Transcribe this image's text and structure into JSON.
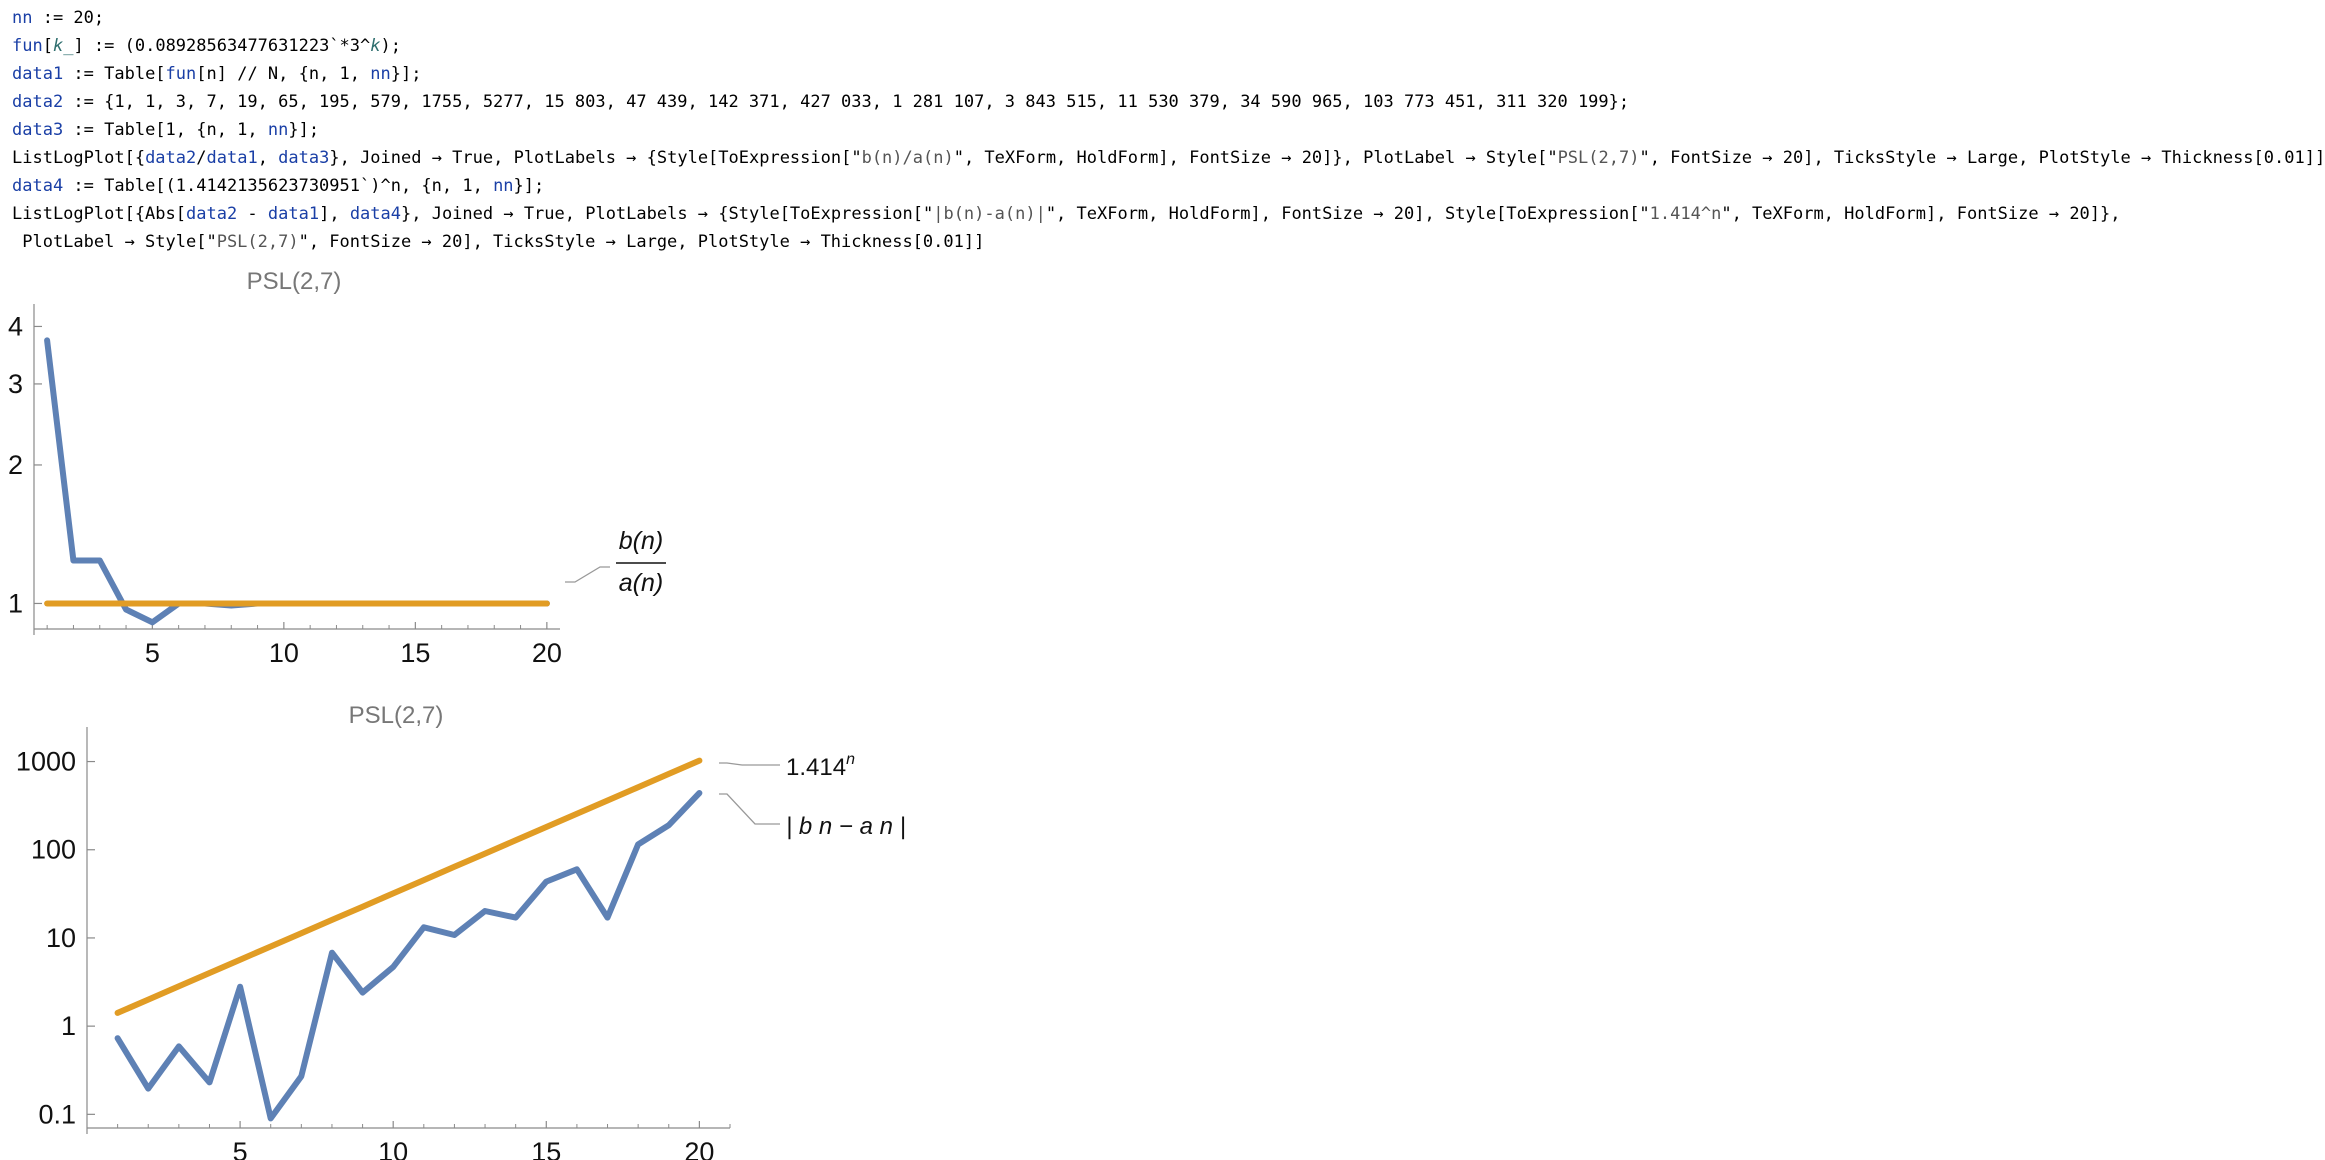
{
  "code_lines": [
    "nn := 20;",
    "fun[k_] := (0.08928563477631223`*3^k);",
    "data1 := Table[fun[n] // N, {n, 1, nn}];",
    "data2 := {1, 1, 3, 7, 19, 65, 195, 579, 1755, 5277, 15 803, 47 439, 142 371, 427 033, 1 281 107, 3 843 515, 11 530 379, 34 590 965, 103 773 451, 311 320 199};",
    "data3 := Table[1, {n, 1, nn}];",
    "ListLogPlot[{data2/data1, data3}, Joined → True, PlotLabels → {Style[ToExpression[\"b(n)/a(n)\", TeXForm, HoldForm], FontSize → 20]}, PlotLabel → Style[\"PSL(2,7)\", FontSize → 20], TicksStyle → Large, PlotStyle → Thickness[0.01]]",
    "data4 := Table[(1.4142135623730951`)^n, {n, 1, nn}];",
    "ListLogPlot[{Abs[data2 - data1], data4}, Joined → True, PlotLabels → {Style[ToExpression[\"|b(n)-a(n)|\", TeXForm, HoldForm], FontSize → 20], Style[ToExpression[\"1.414^n\", TeXForm, HoldForm], FontSize → 20]},",
    " PlotLabel → Style[\"PSL(2,7)\", FontSize → 20], TicksStyle → Large, PlotStyle → Thickness[0.01]]"
  ],
  "colors": {
    "blue": "#5e81b5",
    "orange": "#e19c24",
    "axis": "#8a8a8a",
    "title": "#777777"
  },
  "chart_data": [
    {
      "type": "line",
      "title": "PSL(2,7)",
      "yscale": "log",
      "xlim": [
        0.5,
        20.5
      ],
      "ylim": [
        0.88,
        4.3
      ],
      "x_ticks": [
        "5",
        "10",
        "15",
        "20"
      ],
      "y_ticks": [
        "1",
        "2",
        "3",
        "4"
      ],
      "x": [
        1,
        2,
        3,
        4,
        5,
        6,
        7,
        8,
        9,
        10,
        11,
        12,
        13,
        14,
        15,
        16,
        17,
        18,
        19,
        20
      ],
      "series": [
        {
          "name": "b(n)/a(n)",
          "color": "blue",
          "values": [
            3.73,
            1.24,
            1.24,
            0.97,
            0.91,
            1.0,
            1.0,
            0.99,
            1.0,
            1.0,
            1.0,
            1.0,
            1.0,
            1.0,
            1.0,
            1.0,
            1.0,
            1.0,
            1.0,
            1.0
          ]
        },
        {
          "color": "orange",
          "values": [
            1,
            1,
            1,
            1,
            1,
            1,
            1,
            1,
            1,
            1,
            1,
            1,
            1,
            1,
            1,
            1,
            1,
            1,
            1,
            1
          ]
        }
      ],
      "label_fraction": {
        "numerator": "b(n)",
        "denominator": "a(n)"
      }
    },
    {
      "type": "line",
      "title": "PSL(2,7)",
      "yscale": "log",
      "xlim": [
        0,
        21
      ],
      "ylim": [
        0.07,
        2000
      ],
      "x_ticks": [
        "5",
        "10",
        "15",
        "20"
      ],
      "y_ticks": [
        "0.1",
        "1",
        "10",
        "100",
        "1000"
      ],
      "x": [
        1,
        2,
        3,
        4,
        5,
        6,
        7,
        8,
        9,
        10,
        11,
        12,
        13,
        14,
        15,
        16,
        17,
        18,
        19,
        20
      ],
      "series": [
        {
          "name": "|b n - a n|",
          "color": "blue",
          "values": [
            0.73,
            0.196,
            0.59,
            0.23,
            2.8,
            0.09,
            0.27,
            6.8,
            2.4,
            4.7,
            13.2,
            10.8,
            20.2,
            17.0,
            43.5,
            60.0,
            17.0,
            115,
            190,
            440
          ]
        },
        {
          "name": "1.414^n",
          "color": "orange",
          "values": [
            1.414,
            2,
            2.83,
            4,
            5.66,
            8,
            11.3,
            16,
            22.6,
            32,
            45.3,
            64,
            90.5,
            128,
            181,
            256,
            362,
            512,
            724,
            1024
          ]
        }
      ],
      "label_orange": {
        "base": "1.414",
        "exp": "n"
      },
      "label_blue": "| b n − a n |"
    }
  ]
}
